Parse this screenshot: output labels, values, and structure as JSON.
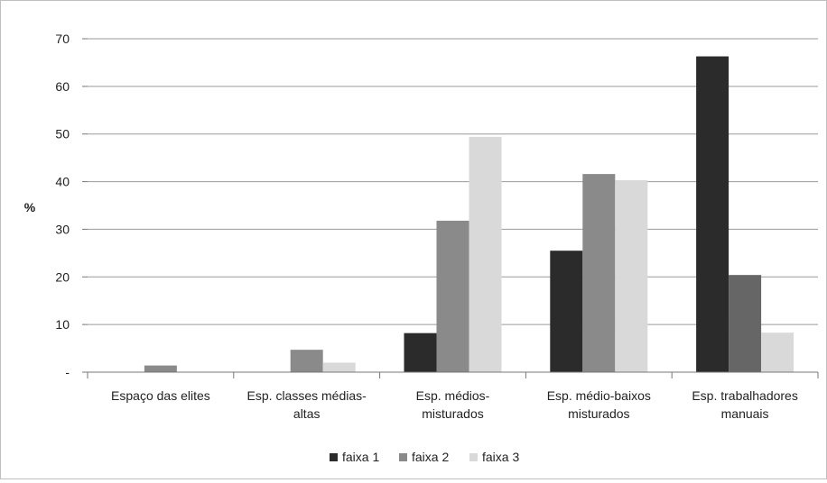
{
  "chart_data": {
    "type": "bar",
    "title": "",
    "xlabel": "",
    "ylabel": "%",
    "ylim": [
      0,
      70
    ],
    "yticks": [
      0,
      10,
      20,
      30,
      40,
      50,
      60,
      70
    ],
    "ytick_labels": [
      "-",
      "10",
      "20",
      "30",
      "40",
      "50",
      "60",
      "70"
    ],
    "categories": [
      [
        "Espaço das elites"
      ],
      [
        "Esp. classes médias-",
        "altas"
      ],
      [
        "Esp. médios-",
        "misturados"
      ],
      [
        "Esp. médio-baixos",
        "misturados"
      ],
      [
        "Esp. trabalhadores",
        "manuais"
      ]
    ],
    "series": [
      {
        "name": "faixa 1",
        "color": "#2b2b2b",
        "values": [
          0,
          0,
          8.2,
          25.5,
          66.3
        ]
      },
      {
        "name": "faixa 2",
        "color": "#8a8a8a",
        "values": [
          1.4,
          4.7,
          31.8,
          41.6,
          20.4
        ]
      },
      {
        "name": "faixa 3",
        "color": "#d9d9d9",
        "values": [
          0,
          2.0,
          49.4,
          40.3,
          8.3
        ]
      }
    ],
    "series_colors_note_cat5_faixa2": "#666666",
    "grid": true,
    "legend": "bottom-center"
  }
}
